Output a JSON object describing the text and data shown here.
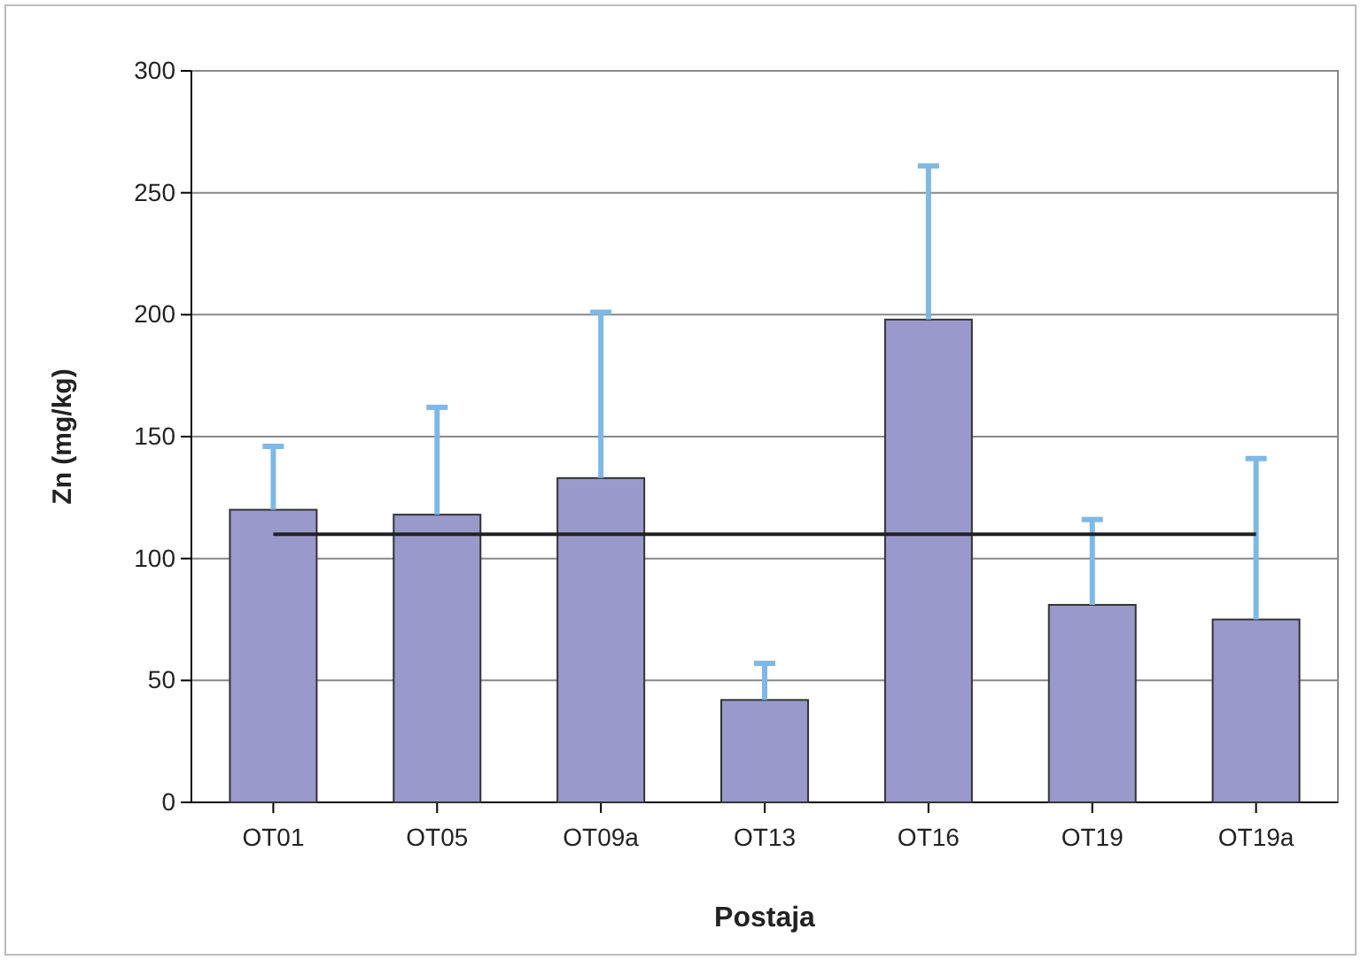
{
  "chart_data": {
    "type": "bar",
    "xlabel": "Postaja",
    "ylabel": "Zn (mg/kg)",
    "categories": [
      "OT01",
      "OT05",
      "OT09a",
      "OT13",
      "OT16",
      "OT19",
      "OT19a"
    ],
    "values": [
      120,
      118,
      133,
      42,
      198,
      81,
      75
    ],
    "errors": [
      [
        120,
        146
      ],
      [
        118,
        162
      ],
      [
        133,
        201
      ],
      [
        42,
        57
      ],
      [
        198,
        261
      ],
      [
        81,
        116
      ],
      [
        75,
        141
      ]
    ],
    "color": "#9999cc",
    "ylim": [
      0,
      300
    ],
    "yticks": [
      0,
      50,
      100,
      150,
      200,
      250,
      300
    ],
    "grid": "y",
    "ref_lines": [
      {
        "axis": "y",
        "value": 110,
        "color": "#222222"
      }
    ]
  }
}
